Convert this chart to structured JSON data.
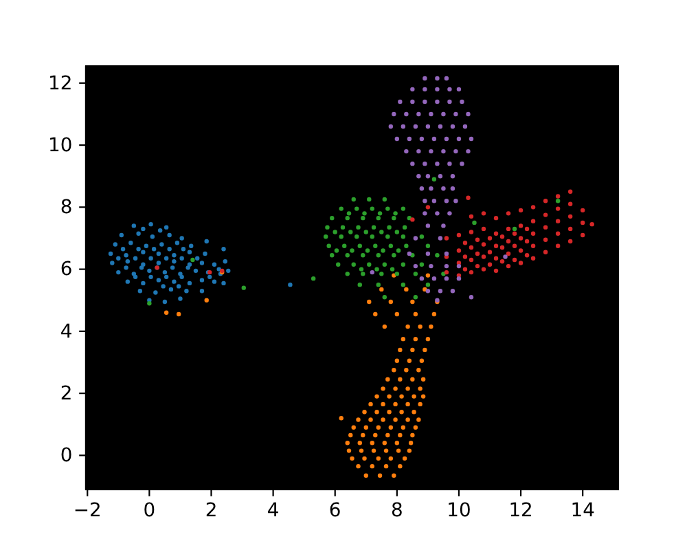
{
  "chart_data": {
    "type": "scatter",
    "marker": "circle",
    "xlim": [
      -2.05,
      15.15
    ],
    "ylim": [
      -1.1,
      12.55
    ],
    "xticks": [
      -2,
      0,
      2,
      4,
      6,
      8,
      10,
      12,
      14
    ],
    "yticks": [
      0,
      2,
      4,
      6,
      8,
      10,
      12
    ],
    "series": [
      {
        "color": "#1f77b4",
        "x": [
          -0.5,
          0.05,
          0.55,
          -0.9,
          -0.35,
          0.1,
          0.65,
          1.05,
          -1.1,
          -0.6,
          -0.1,
          0.4,
          0.9,
          1.35,
          -1.25,
          -0.75,
          -0.2,
          0.3,
          0.8,
          1.3,
          1.8,
          -1.2,
          -0.7,
          -0.2,
          0.3,
          0.8,
          1.3,
          1.7,
          2.1,
          2.45,
          -1.0,
          -0.5,
          0.0,
          0.5,
          1.0,
          1.5,
          1.9,
          2.3,
          2.55,
          -0.7,
          -0.2,
          0.3,
          0.8,
          1.3,
          1.7,
          2.1,
          2.4,
          -0.3,
          0.2,
          0.7,
          1.2,
          1.7,
          0.0,
          0.5,
          1.0,
          1.85,
          2.4,
          4.55,
          -0.2,
          0.35,
          -0.85,
          -0.35,
          0.15,
          0.65,
          1.1,
          -1.0,
          -0.45,
          0.05,
          0.55,
          1.05,
          1.55,
          -0.75,
          -0.25,
          0.25,
          0.75,
          1.25,
          -0.45,
          0.05,
          0.55,
          1.05,
          0.45,
          0.95,
          1.95,
          2.25
        ],
        "values": [
          7.4,
          7.45,
          7.35,
          7.1,
          7.15,
          7.05,
          7.1,
          7.0,
          6.8,
          6.85,
          6.75,
          6.8,
          6.85,
          6.75,
          6.5,
          6.45,
          6.55,
          6.5,
          6.45,
          6.55,
          6.5,
          6.2,
          6.25,
          6.15,
          6.2,
          6.25,
          6.15,
          6.2,
          6.15,
          6.25,
          5.9,
          5.85,
          5.95,
          5.9,
          5.85,
          5.95,
          5.9,
          5.85,
          5.95,
          5.6,
          5.55,
          5.65,
          5.6,
          5.55,
          5.65,
          5.6,
          5.55,
          5.3,
          5.25,
          5.35,
          5.3,
          5.3,
          5.0,
          4.95,
          5.05,
          6.9,
          6.65,
          5.5,
          7.3,
          7.25,
          6.65,
          6.65,
          6.65,
          6.65,
          6.65,
          6.35,
          6.35,
          6.35,
          6.35,
          6.35,
          6.35,
          6.05,
          6.05,
          6.05,
          6.05,
          6.05,
          5.75,
          5.75,
          5.75,
          5.75,
          5.45,
          5.45,
          5.75,
          6.0
        ]
      },
      {
        "color": "#ff7f0e",
        "x": [
          7.0,
          7.45,
          7.9,
          6.75,
          7.2,
          7.65,
          8.1,
          6.55,
          6.95,
          7.4,
          7.8,
          8.25,
          6.45,
          6.85,
          7.25,
          7.65,
          8.05,
          8.4,
          6.4,
          6.8,
          7.2,
          7.6,
          8.0,
          8.45,
          6.5,
          6.9,
          7.3,
          7.7,
          8.1,
          8.5,
          6.6,
          7.0,
          7.4,
          7.8,
          8.2,
          8.6,
          6.75,
          7.15,
          7.55,
          7.95,
          8.35,
          8.7,
          6.95,
          7.35,
          7.75,
          8.15,
          8.55,
          7.15,
          7.55,
          7.95,
          8.35,
          8.75,
          7.35,
          7.75,
          8.15,
          8.55,
          8.85,
          7.55,
          7.95,
          8.35,
          8.75,
          7.7,
          8.1,
          8.5,
          8.85,
          7.9,
          8.3,
          8.7,
          8.0,
          8.4,
          8.8,
          8.1,
          8.5,
          8.9,
          8.2,
          8.6,
          9.0,
          7.6,
          8.35,
          8.75,
          9.1,
          7.3,
          8.0,
          8.6,
          9.2,
          7.1,
          7.8,
          8.5,
          9.3,
          7.5,
          8.3,
          8.9,
          7.9,
          9.0,
          0.55,
          0.95,
          1.85,
          2.35,
          6.2
        ],
        "values": [
          -0.65,
          -0.65,
          -0.65,
          -0.35,
          -0.35,
          -0.35,
          -0.35,
          -0.1,
          -0.1,
          -0.1,
          -0.1,
          -0.1,
          0.15,
          0.15,
          0.15,
          0.15,
          0.15,
          0.15,
          0.4,
          0.4,
          0.4,
          0.4,
          0.4,
          0.4,
          0.65,
          0.65,
          0.65,
          0.65,
          0.65,
          0.65,
          0.9,
          0.9,
          0.9,
          0.9,
          0.9,
          0.9,
          1.15,
          1.15,
          1.15,
          1.15,
          1.15,
          1.15,
          1.4,
          1.4,
          1.4,
          1.4,
          1.4,
          1.65,
          1.65,
          1.65,
          1.65,
          1.65,
          1.9,
          1.9,
          1.9,
          1.9,
          1.9,
          2.15,
          2.15,
          2.15,
          2.15,
          2.45,
          2.45,
          2.45,
          2.45,
          2.75,
          2.75,
          2.75,
          3.05,
          3.05,
          3.05,
          3.4,
          3.4,
          3.4,
          3.75,
          3.75,
          3.75,
          4.15,
          4.15,
          4.15,
          4.15,
          4.55,
          4.55,
          4.55,
          4.55,
          4.95,
          4.95,
          4.95,
          4.95,
          5.35,
          5.35,
          5.35,
          5.8,
          5.8,
          4.6,
          4.55,
          5.0,
          5.9,
          1.2
        ]
      },
      {
        "color": "#2ca02c",
        "x": [
          6.6,
          7.1,
          7.6,
          6.2,
          6.7,
          7.2,
          7.7,
          8.2,
          5.9,
          6.4,
          6.9,
          7.4,
          7.9,
          8.4,
          5.75,
          6.25,
          6.75,
          7.25,
          7.75,
          8.25,
          5.7,
          6.2,
          6.7,
          7.2,
          7.7,
          8.2,
          8.8,
          5.8,
          6.3,
          6.8,
          7.3,
          7.8,
          8.3,
          9.0,
          5.9,
          6.4,
          6.9,
          7.4,
          7.9,
          8.5,
          9.3,
          6.1,
          6.6,
          7.1,
          7.6,
          8.2,
          8.8,
          6.4,
          6.9,
          7.5,
          8.0,
          8.6,
          9.5,
          6.8,
          7.4,
          8.2,
          9.0,
          7.6,
          8.6,
          6.45,
          6.95,
          7.45,
          7.95,
          6.0,
          6.5,
          7.0,
          7.5,
          8.0,
          6.05,
          6.55,
          7.05,
          7.55,
          8.05,
          6.85,
          7.35,
          7.85,
          5.3,
          3.05,
          10.5,
          11.8,
          13.2,
          9.2,
          0.0,
          1.4
        ],
        "values": [
          8.25,
          8.25,
          8.25,
          7.95,
          7.95,
          7.95,
          7.95,
          7.95,
          7.65,
          7.65,
          7.65,
          7.65,
          7.65,
          7.65,
          7.35,
          7.35,
          7.35,
          7.35,
          7.35,
          7.35,
          7.05,
          7.05,
          7.05,
          7.05,
          7.05,
          7.05,
          7.05,
          6.75,
          6.75,
          6.75,
          6.75,
          6.75,
          6.75,
          6.75,
          6.45,
          6.45,
          6.45,
          6.45,
          6.45,
          6.45,
          6.45,
          6.15,
          6.15,
          6.15,
          6.15,
          6.15,
          6.15,
          5.85,
          5.85,
          5.85,
          5.85,
          5.85,
          5.85,
          5.5,
          5.5,
          5.5,
          5.5,
          5.1,
          5.1,
          7.8,
          7.8,
          7.8,
          7.8,
          7.2,
          7.2,
          7.2,
          7.2,
          7.2,
          6.6,
          6.6,
          6.6,
          6.6,
          6.6,
          6.0,
          6.0,
          6.0,
          5.7,
          5.4,
          7.5,
          7.3,
          8.2,
          8.9,
          4.9,
          6.3
        ]
      },
      {
        "color": "#d62728",
        "x": [
          9.6,
          9.6,
          9.6,
          10.0,
          10.0,
          10.0,
          10.0,
          10.4,
          10.4,
          10.4,
          10.4,
          10.4,
          10.8,
          10.8,
          10.8,
          10.8,
          10.8,
          11.2,
          11.2,
          11.2,
          11.2,
          11.2,
          11.6,
          11.6,
          11.6,
          11.6,
          11.6,
          12.0,
          12.0,
          12.0,
          12.0,
          12.0,
          12.4,
          12.4,
          12.4,
          12.4,
          12.4,
          12.8,
          12.8,
          12.8,
          12.8,
          12.8,
          13.2,
          13.2,
          13.2,
          13.2,
          13.2,
          13.6,
          13.6,
          13.6,
          13.6,
          13.6,
          14.0,
          14.0,
          14.0,
          14.3,
          10.2,
          10.2,
          10.2,
          10.6,
          10.6,
          10.6,
          11.0,
          11.0,
          11.0,
          11.4,
          11.4,
          11.4,
          11.8,
          11.8,
          11.8,
          12.2,
          12.2,
          12.2,
          0.25,
          1.95,
          2.35,
          9.0,
          8.5,
          10.3
        ],
        "values": [
          5.9,
          6.4,
          7.0,
          5.8,
          6.2,
          6.6,
          7.1,
          5.9,
          6.3,
          6.7,
          7.2,
          7.7,
          6.0,
          6.4,
          6.8,
          7.3,
          7.8,
          5.95,
          6.35,
          6.75,
          7.15,
          7.65,
          6.1,
          6.5,
          6.9,
          7.3,
          7.8,
          6.2,
          6.6,
          7.0,
          7.4,
          7.9,
          6.35,
          6.75,
          7.15,
          7.55,
          8.0,
          6.55,
          6.95,
          7.35,
          7.75,
          8.2,
          6.75,
          7.15,
          7.55,
          7.95,
          8.35,
          6.9,
          7.3,
          7.7,
          8.1,
          8.5,
          7.1,
          7.5,
          7.9,
          7.45,
          6.0,
          6.4,
          6.85,
          6.1,
          6.5,
          6.95,
          6.15,
          6.55,
          7.0,
          6.25,
          6.7,
          7.05,
          6.3,
          6.75,
          7.15,
          6.45,
          6.9,
          7.3,
          6.05,
          5.9,
          5.95,
          8.0,
          7.6,
          8.3
        ]
      },
      {
        "color": "#9467bd",
        "x": [
          8.9,
          9.3,
          9.6,
          8.5,
          8.9,
          9.3,
          9.7,
          10.0,
          8.1,
          8.5,
          8.9,
          9.3,
          9.7,
          10.1,
          7.9,
          8.3,
          8.7,
          9.1,
          9.5,
          9.9,
          10.3,
          7.8,
          8.2,
          8.6,
          9.0,
          9.4,
          9.8,
          10.2,
          8.0,
          8.4,
          8.8,
          9.2,
          9.6,
          10.0,
          10.4,
          8.3,
          8.7,
          9.1,
          9.5,
          9.9,
          10.3,
          8.5,
          8.9,
          9.3,
          9.7,
          10.1,
          8.7,
          9.0,
          9.4,
          9.8,
          8.8,
          9.1,
          9.5,
          9.8,
          8.9,
          9.2,
          9.6,
          9.9,
          8.9,
          9.3,
          9.7,
          9.0,
          9.5,
          8.6,
          9.4,
          8.4,
          9.0,
          9.6,
          8.6,
          9.1,
          9.6,
          10.0,
          8.8,
          9.2,
          9.6,
          10.0,
          9.0,
          9.4,
          9.8,
          9.3,
          10.4,
          7.2,
          11.5
        ],
        "values": [
          12.15,
          12.15,
          12.15,
          11.8,
          11.8,
          11.8,
          11.8,
          11.8,
          11.4,
          11.4,
          11.4,
          11.4,
          11.4,
          11.4,
          11.0,
          11.0,
          11.0,
          11.0,
          11.0,
          11.0,
          11.0,
          10.6,
          10.6,
          10.6,
          10.6,
          10.6,
          10.6,
          10.6,
          10.2,
          10.2,
          10.2,
          10.2,
          10.2,
          10.2,
          10.2,
          9.8,
          9.8,
          9.8,
          9.8,
          9.8,
          9.8,
          9.4,
          9.4,
          9.4,
          9.4,
          9.4,
          9.0,
          9.0,
          9.0,
          9.0,
          8.6,
          8.6,
          8.6,
          8.6,
          8.2,
          8.2,
          8.2,
          8.2,
          7.8,
          7.8,
          7.8,
          7.4,
          7.4,
          7.0,
          7.0,
          6.5,
          6.5,
          6.5,
          6.1,
          6.1,
          6.1,
          6.1,
          5.7,
          5.7,
          5.7,
          5.7,
          5.3,
          5.3,
          5.3,
          5.0,
          5.1,
          5.9,
          6.4
        ]
      }
    ]
  }
}
